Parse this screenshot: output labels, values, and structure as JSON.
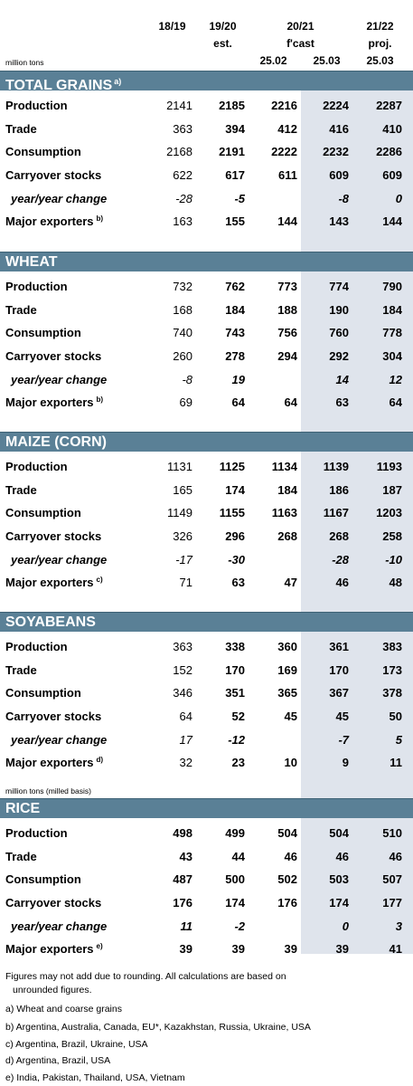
{
  "header": {
    "col_18_19": "18/19",
    "col_19_20": "19/20",
    "col_19_20_sub": "est.",
    "col_20_21": "20/21",
    "col_20_21_sub": "f'cast",
    "col_20_21_a": "25.02",
    "col_20_21_b": "25.03",
    "col_21_22": "21/22",
    "col_21_22_sub": "proj.",
    "col_21_22_date": "25.03",
    "unit": "million tons"
  },
  "sections": [
    {
      "title": "TOTAL GRAINS",
      "note_ref": "a)",
      "rows": [
        {
          "label": "Production",
          "values": [
            "2141",
            "2185",
            "2216",
            "2224",
            "2287"
          ]
        },
        {
          "label": "Trade",
          "values": [
            "363",
            "394",
            "412",
            "416",
            "410"
          ]
        },
        {
          "label": "Consumption",
          "values": [
            "2168",
            "2191",
            "2222",
            "2232",
            "2286"
          ]
        },
        {
          "label": "Carryover stocks",
          "values": [
            "622",
            "617",
            "611",
            "609",
            "609"
          ]
        },
        {
          "label": "year/year change",
          "values": [
            "-28",
            "-5",
            "",
            "-8",
            "0"
          ]
        },
        {
          "label": "Major exporters",
          "note_ref": "b)",
          "values": [
            "163",
            "155",
            "144",
            "143",
            "144"
          ]
        }
      ]
    },
    {
      "title": "WHEAT",
      "rows": [
        {
          "label": "Production",
          "values": [
            "732",
            "762",
            "773",
            "774",
            "790"
          ]
        },
        {
          "label": "Trade",
          "values": [
            "168",
            "184",
            "188",
            "190",
            "184"
          ]
        },
        {
          "label": "Consumption",
          "values": [
            "740",
            "743",
            "756",
            "760",
            "778"
          ]
        },
        {
          "label": "Carryover stocks",
          "values": [
            "260",
            "278",
            "294",
            "292",
            "304"
          ]
        },
        {
          "label": "year/year change",
          "values": [
            "-8",
            "19",
            "",
            "14",
            "12"
          ]
        },
        {
          "label": "Major exporters",
          "note_ref": "b)",
          "values": [
            "69",
            "64",
            "64",
            "63",
            "64"
          ]
        }
      ]
    },
    {
      "title": "MAIZE (CORN)",
      "rows": [
        {
          "label": "Production",
          "values": [
            "1131",
            "1125",
            "1134",
            "1139",
            "1193"
          ]
        },
        {
          "label": "Trade",
          "values": [
            "165",
            "174",
            "184",
            "186",
            "187"
          ]
        },
        {
          "label": "Consumption",
          "values": [
            "1149",
            "1155",
            "1163",
            "1167",
            "1203"
          ]
        },
        {
          "label": "Carryover stocks",
          "values": [
            "326",
            "296",
            "268",
            "268",
            "258"
          ]
        },
        {
          "label": "year/year change",
          "values": [
            "-17",
            "-30",
            "",
            "-28",
            "-10"
          ]
        },
        {
          "label": "Major exporters",
          "note_ref": "c)",
          "values": [
            "71",
            "63",
            "47",
            "46",
            "48"
          ]
        }
      ]
    },
    {
      "title": "SOYABEANS",
      "rows": [
        {
          "label": "Production",
          "values": [
            "363",
            "338",
            "360",
            "361",
            "383"
          ]
        },
        {
          "label": "Trade",
          "values": [
            "152",
            "170",
            "169",
            "170",
            "173"
          ]
        },
        {
          "label": "Consumption",
          "values": [
            "346",
            "351",
            "365",
            "367",
            "378"
          ]
        },
        {
          "label": "Carryover stocks",
          "values": [
            "64",
            "52",
            "45",
            "45",
            "50"
          ]
        },
        {
          "label": "year/year change",
          "values": [
            "17",
            "-12",
            "",
            "-7",
            "5"
          ]
        },
        {
          "label": "Major exporters",
          "note_ref": "d)",
          "values": [
            "32",
            "23",
            "10",
            "9",
            "11"
          ]
        }
      ]
    },
    {
      "title": "RICE",
      "unit": "million tons (milled basis)",
      "rows": [
        {
          "label": "Production",
          "values": [
            "498",
            "499",
            "504",
            "504",
            "510"
          ]
        },
        {
          "label": "Trade",
          "values": [
            "43",
            "44",
            "46",
            "46",
            "46"
          ]
        },
        {
          "label": "Consumption",
          "values": [
            "487",
            "500",
            "502",
            "503",
            "507"
          ]
        },
        {
          "label": "Carryover stocks",
          "values": [
            "176",
            "174",
            "176",
            "174",
            "177"
          ]
        },
        {
          "label": "year/year change",
          "values": [
            "11",
            "-2",
            "",
            "0",
            "3"
          ]
        },
        {
          "label": "Major exporters",
          "note_ref": "e)",
          "values": [
            "39",
            "39",
            "39",
            "39",
            "41"
          ]
        }
      ]
    }
  ],
  "footnotes": {
    "rounding_1": "Figures may not add due to rounding. All calculations are based on",
    "rounding_2": "unrounded figures.",
    "a": "a) Wheat and coarse grains",
    "b": "b) Argentina, Australia, Canada, EU*, Kazakhstan, Russia, Ukraine, USA",
    "c": "c) Argentina, Brazil, Ukraine, USA",
    "d": "d) Argentina, Brazil, USA",
    "e": "e) India, Pakistan, Thailand, USA, Vietnam"
  },
  "colors": {
    "band": "#5a8096",
    "projection_shade": "#dfe4ec"
  }
}
